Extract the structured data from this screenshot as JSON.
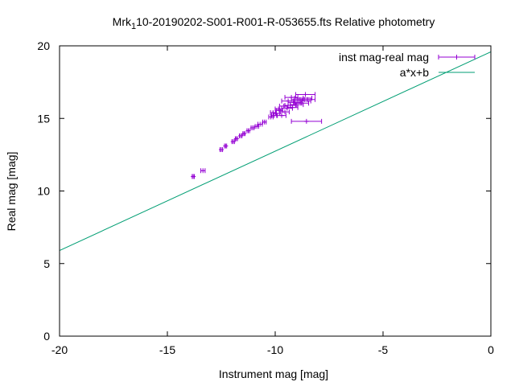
{
  "chart_data": {
    "type": "scatter",
    "title_prefix": "Mrk",
    "title_sub": "1",
    "title_suffix": "10-20190202-S001-R001-R-053655.fts Relative photometry",
    "xlabel": "Instrument mag [mag]",
    "ylabel": "Real mag [mag]",
    "xlim": [
      -20,
      0
    ],
    "ylim": [
      0,
      20
    ],
    "xticks": [
      -20,
      -15,
      -10,
      -5,
      0
    ],
    "yticks": [
      0,
      5,
      10,
      15,
      20
    ],
    "grid": false,
    "legend_position": "top-right",
    "series": [
      {
        "name": "inst mag-real mag",
        "kind": "points-xerror",
        "color": "#9400d3",
        "points": [
          {
            "x": -13.8,
            "y": 11.0,
            "xerr": 0.05
          },
          {
            "x": -13.35,
            "y": 11.4,
            "xerr": 0.1
          },
          {
            "x": -12.5,
            "y": 12.85,
            "xerr": 0.06
          },
          {
            "x": -12.3,
            "y": 13.1,
            "xerr": 0.05
          },
          {
            "x": -11.95,
            "y": 13.4,
            "xerr": 0.06
          },
          {
            "x": -11.8,
            "y": 13.6,
            "xerr": 0.05
          },
          {
            "x": -11.6,
            "y": 13.8,
            "xerr": 0.06
          },
          {
            "x": -11.45,
            "y": 13.95,
            "xerr": 0.05
          },
          {
            "x": -11.25,
            "y": 14.15,
            "xerr": 0.06
          },
          {
            "x": -11.05,
            "y": 14.35,
            "xerr": 0.07
          },
          {
            "x": -10.85,
            "y": 14.45,
            "xerr": 0.08
          },
          {
            "x": -10.7,
            "y": 14.6,
            "xerr": 0.1
          },
          {
            "x": -10.5,
            "y": 14.75,
            "xerr": 0.08
          },
          {
            "x": -10.2,
            "y": 15.1,
            "xerr": 0.1
          },
          {
            "x": -10.05,
            "y": 15.2,
            "xerr": 0.12
          },
          {
            "x": -9.95,
            "y": 15.35,
            "xerr": 0.15
          },
          {
            "x": -9.8,
            "y": 15.55,
            "xerr": 0.15
          },
          {
            "x": -9.7,
            "y": 15.2,
            "xerr": 0.2
          },
          {
            "x": -9.55,
            "y": 15.45,
            "xerr": 0.2
          },
          {
            "x": -9.45,
            "y": 15.7,
            "xerr": 0.25
          },
          {
            "x": -9.3,
            "y": 15.9,
            "xerr": 0.25
          },
          {
            "x": -9.1,
            "y": 16.1,
            "xerr": 0.3
          },
          {
            "x": -8.95,
            "y": 16.3,
            "xerr": 0.3
          },
          {
            "x": -8.8,
            "y": 16.05,
            "xerr": 0.35
          },
          {
            "x": -8.7,
            "y": 16.4,
            "xerr": 0.4
          },
          {
            "x": -8.6,
            "y": 16.65,
            "xerr": 0.45
          },
          {
            "x": -9.4,
            "y": 16.2,
            "xerr": 0.3
          },
          {
            "x": -9.2,
            "y": 15.75,
            "xerr": 0.25
          },
          {
            "x": -9.0,
            "y": 15.95,
            "xerr": 0.3
          },
          {
            "x": -8.5,
            "y": 16.3,
            "xerr": 0.35
          },
          {
            "x": -9.6,
            "y": 15.85,
            "xerr": 0.2
          },
          {
            "x": -9.85,
            "y": 15.65,
            "xerr": 0.15
          },
          {
            "x": -10.1,
            "y": 15.4,
            "xerr": 0.12
          },
          {
            "x": -9.25,
            "y": 16.45,
            "xerr": 0.3
          },
          {
            "x": -8.75,
            "y": 16.2,
            "xerr": 0.4
          },
          {
            "x": -8.55,
            "y": 14.8,
            "xerr": 0.7
          }
        ]
      },
      {
        "name": "a*x+b",
        "kind": "line",
        "color": "#009e73",
        "a": 0.6846,
        "b": 19.59
      }
    ]
  }
}
